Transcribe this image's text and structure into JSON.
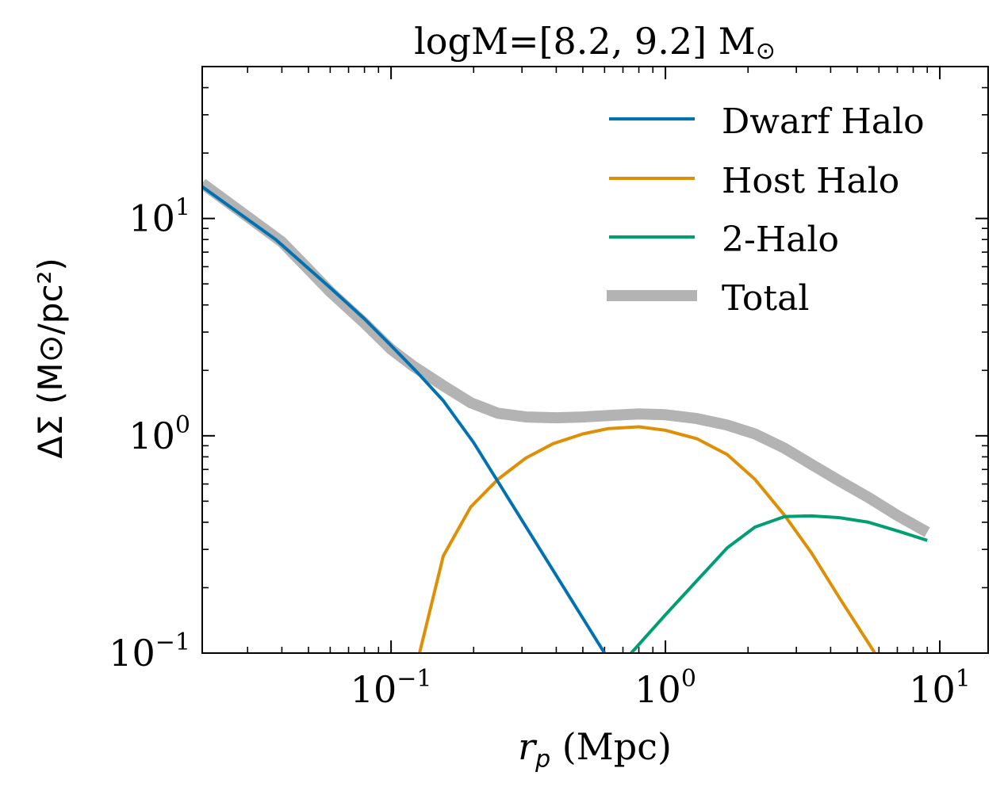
{
  "chart_data": {
    "type": "line",
    "title": "logM=[8.2, 9.2] M",
    "title_sub": "⊙",
    "xlabel_var": "r",
    "xlabel_sub": "p",
    "xlabel_unit": " (Mpc)",
    "ylabel": "ΔΣ (M⊙/pc²)",
    "xscale": "log",
    "yscale": "log",
    "xlim": [
      0.0205,
      15
    ],
    "ylim": [
      0.1,
      50
    ],
    "x_ticks": [
      {
        "value": 0.1,
        "base": "10",
        "exp": "−1"
      },
      {
        "value": 1,
        "base": "10",
        "exp": "0"
      },
      {
        "value": 10,
        "base": "10",
        "exp": "1"
      }
    ],
    "y_ticks": [
      {
        "value": 0.1,
        "base": "10",
        "exp": "−1"
      },
      {
        "value": 1,
        "base": "10",
        "exp": "0"
      },
      {
        "value": 10,
        "base": "10",
        "exp": "1"
      }
    ],
    "legend_position": "top-right",
    "series": [
      {
        "name": "Dwarf Halo",
        "color": "#0072b2",
        "x": [
          0.0205,
          0.038,
          0.06,
          0.08,
          0.1,
          0.125,
          0.155,
          0.2,
          0.6
        ],
        "y": [
          14.0,
          8.0,
          4.8,
          3.45,
          2.6,
          1.95,
          1.45,
          0.93,
          0.1
        ]
      },
      {
        "name": "Host Halo",
        "color": "#de8f05",
        "x": [
          0.127,
          0.155,
          0.195,
          0.245,
          0.31,
          0.39,
          0.5,
          0.62,
          0.8,
          1.0,
          1.3,
          1.68,
          2.12,
          2.72,
          3.4,
          4.3,
          5.8
        ],
        "y": [
          0.1,
          0.28,
          0.47,
          0.63,
          0.79,
          0.92,
          1.02,
          1.08,
          1.1,
          1.06,
          0.97,
          0.82,
          0.63,
          0.43,
          0.29,
          0.18,
          0.1
        ]
      },
      {
        "name": "2-Halo",
        "color": "#029e73",
        "x": [
          0.75,
          1.0,
          1.3,
          1.68,
          2.12,
          2.72,
          3.4,
          4.3,
          5.5,
          7.0,
          9.0
        ],
        "y": [
          0.1,
          0.15,
          0.215,
          0.305,
          0.38,
          0.425,
          0.428,
          0.42,
          0.4,
          0.365,
          0.33
        ]
      },
      {
        "name": "Total",
        "color": "#b3b3b3",
        "x": [
          0.0205,
          0.04,
          0.06,
          0.08,
          0.1,
          0.12,
          0.155,
          0.195,
          0.245,
          0.31,
          0.4,
          0.5,
          0.62,
          0.8,
          1.0,
          1.3,
          1.68,
          2.12,
          2.7,
          3.4,
          4.3,
          5.5,
          7.0,
          9.0
        ],
        "y": [
          14.5,
          7.8,
          4.6,
          3.3,
          2.5,
          2.1,
          1.7,
          1.42,
          1.27,
          1.22,
          1.21,
          1.22,
          1.24,
          1.26,
          1.25,
          1.2,
          1.12,
          1.02,
          0.88,
          0.74,
          0.62,
          0.52,
          0.43,
          0.36
        ]
      }
    ]
  }
}
